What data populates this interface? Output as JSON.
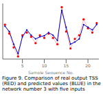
{
  "chart_data": {
    "type": "line",
    "x": [
      1,
      2,
      3,
      4,
      5,
      6,
      7,
      8,
      9,
      10,
      11,
      12,
      13,
      14,
      15,
      16,
      17,
      18,
      19,
      20,
      21,
      22
    ],
    "series": [
      {
        "color": "#ff0000",
        "marker": "dot",
        "values": [
          0.65,
          0.48,
          0.22,
          0.05,
          0.45,
          0.5,
          0.42,
          0.3,
          0.45,
          0.4,
          0.48,
          0.4,
          0.28,
          0.98,
          0.52,
          0.2,
          0.38,
          0.45,
          0.75,
          0.58,
          0.5,
          0.68
        ]
      },
      {
        "color": "#0000cc",
        "marker": "dot",
        "values": [
          0.62,
          0.52,
          0.28,
          0.1,
          0.42,
          0.55,
          0.45,
          0.38,
          0.42,
          0.44,
          0.5,
          0.45,
          0.35,
          0.92,
          0.6,
          0.28,
          0.32,
          0.38,
          0.65,
          0.6,
          0.55,
          0.65
        ]
      }
    ],
    "xlabel": "Sample Sequence No.",
    "xlim": [
      0.5,
      22.5
    ],
    "xticks": [
      5,
      10,
      15,
      20
    ],
    "ylim": [
      0.0,
      1.05
    ],
    "tick_labels": "x",
    "annotations": [
      "Figure 9. Comparison of real output TSS (RED) and predicted values (BLUE) in the network number 3 with five inputs"
    ]
  }
}
